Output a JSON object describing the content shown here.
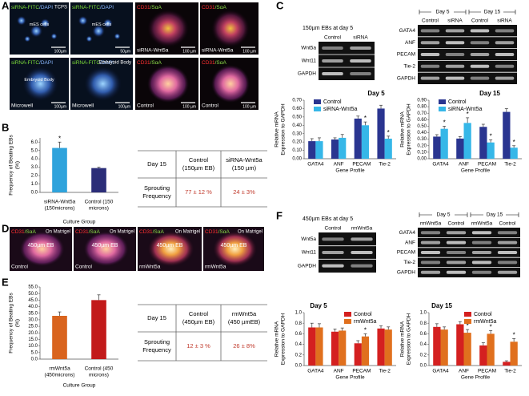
{
  "panel_labels": [
    "A",
    "B",
    "C",
    "D",
    "E",
    "F"
  ],
  "micrographs_a": [
    {
      "channel": [
        "siRNA-FITC",
        "/DAPI"
      ],
      "corner": "TCPS",
      "label": "mES cells",
      "scale": "100µm"
    },
    {
      "channel": [
        "siRNA-FITC",
        "/DAPI"
      ],
      "label": "mES cells",
      "scale": "50µm"
    },
    {
      "channel": [
        "CD31",
        "/SαA"
      ],
      "caption": "siRNA-Wnt5a",
      "scale": "100 µm"
    },
    {
      "channel": [
        "CD31",
        "/SαA"
      ],
      "caption": "siRNA-Wnt5a",
      "scale": "100 µm"
    },
    {
      "channel": [
        "siRNA-FITC",
        "/DAPI"
      ],
      "label": "Embryoid Body",
      "caption": "Microwell",
      "scale": "100µm"
    },
    {
      "channel": [
        "siRNA-FITC",
        "/DAPI"
      ],
      "corner": "Embryoid Body",
      "caption": "Microwell",
      "scale": "100µm"
    },
    {
      "channel": [
        "CD31",
        "/SαA"
      ],
      "caption": "Control",
      "scale": "100 µm"
    },
    {
      "channel": [
        "CD31",
        "/SαA"
      ],
      "caption": "Control",
      "scale": "100 µm"
    }
  ],
  "micrographs_d": [
    {
      "channel": [
        "CD31",
        "/SαA"
      ],
      "corner": "On Matrigel",
      "label": "450µm EB",
      "caption": "Control"
    },
    {
      "channel": [
        "CD31",
        "/SαA"
      ],
      "corner": "On Matrigel",
      "label": "450µm EB",
      "caption": "Control"
    },
    {
      "channel": [
        "CD31",
        "/SαA"
      ],
      "corner": "On Matrigel",
      "label": "450µm EB",
      "caption": "rmWnt5a"
    },
    {
      "channel": [
        "CD31",
        "/SαA"
      ],
      "corner": "On Matrigel",
      "label": "450µm EB",
      "caption": "rmWnt5a"
    }
  ],
  "gels": [
    {
      "title": "150µm EBs at day 5",
      "lanes": [
        "Control",
        "siRNA"
      ],
      "rows": [
        "Wnt5a",
        "Wnt11",
        "GAPDH"
      ]
    },
    {
      "days": [
        "Day 5",
        "Day 15"
      ],
      "lanes": [
        "Control",
        "siRNA",
        "Control",
        "siRNA"
      ],
      "rows": [
        "GATA4",
        "ANF",
        "PECAM",
        "Tie-2",
        "GAPDH"
      ]
    },
    {
      "title": "450µm EBs at day 5",
      "lanes": [
        "Control",
        "rmWnt5a"
      ],
      "rows": [
        "Wnt5a",
        "Wnt11",
        "GAPDH"
      ]
    },
    {
      "days": [
        "Day 5",
        "Day 15"
      ],
      "lanes": [
        "rmWnt5a",
        "Control",
        "rmWnt5a",
        "Control"
      ],
      "rows": [
        "GATA4",
        "ANF",
        "PECAM",
        "Tie-2",
        "GAPDH"
      ]
    }
  ],
  "tables": [
    {
      "header": [
        [
          "Day 15"
        ],
        [
          "Control",
          "(150µm EB)"
        ],
        [
          "siRNA-Wnt5a",
          "(150 µm)"
        ]
      ],
      "rows": [
        [
          [
            "Sprouting",
            "Frequency"
          ],
          [
            "77 ± 12 %"
          ],
          [
            "24 ± 3%"
          ]
        ]
      ]
    },
    {
      "header": [
        [
          "Day 15"
        ],
        [
          "Control",
          "(450µm EB)"
        ],
        [
          "rmWnt5a",
          "(450 µmEB)"
        ]
      ],
      "rows": [
        [
          [
            "Sprouting",
            "Frequency"
          ],
          [
            "12 ± 3 %"
          ],
          [
            "26 ± 8%"
          ]
        ]
      ]
    }
  ],
  "chart_data": [
    {
      "type": "bar",
      "ylabel": [
        "Frequency of Beating EBs",
        "(%)"
      ],
      "xlabel": "Culture Group",
      "categories": [
        [
          "siRNA-Wnt5a",
          "(150microns)"
        ],
        [
          "Control (150",
          "microns)"
        ]
      ],
      "values": [
        5.3,
        2.9
      ],
      "errors": [
        0.7,
        0.1
      ],
      "colors": [
        "#2fa3dc",
        "#2b2d78"
      ],
      "markers": [
        "*",
        null
      ],
      "ylim": [
        0,
        6.5
      ],
      "yticks": [
        {
          "value": 0,
          "label": "0.0"
        },
        {
          "value": 1,
          "label": "1.0"
        },
        {
          "value": 2,
          "label": "2.0"
        },
        {
          "value": 3,
          "label": "3.0"
        },
        {
          "value": 4,
          "label": "4.0"
        },
        {
          "value": 5,
          "label": "5.0"
        },
        {
          "value": 6,
          "label": "6.0"
        }
      ]
    },
    {
      "type": "grouped_bar",
      "title": "Day 5",
      "ylabel": [
        "Relative mRNA",
        "Expression to GAPDH"
      ],
      "xlabel": "Gene Profile",
      "categories": [
        "GATA4",
        "ANF",
        "PECAM",
        "Tie-2"
      ],
      "series": [
        {
          "name": "Control",
          "color": "#2a3590",
          "values": [
            0.21,
            0.23,
            0.48,
            0.6
          ],
          "errors": [
            0.03,
            0.02,
            0.03,
            0.04
          ],
          "markers": [
            null,
            null,
            null,
            null
          ]
        },
        {
          "name": "siRNA-Wnt5a",
          "color": "#36b7e8",
          "values": [
            0.21,
            0.25,
            0.4,
            0.24
          ],
          "errors": [
            0.04,
            0.04,
            0.04,
            0.03
          ],
          "markers": [
            null,
            null,
            "*",
            "*"
          ]
        }
      ],
      "ylim": [
        0,
        0.7
      ],
      "yticks": [
        {
          "value": 0,
          "label": "0.00"
        },
        {
          "value": 0.1,
          "label": "0.10"
        },
        {
          "value": 0.2,
          "label": "0.20"
        },
        {
          "value": 0.3,
          "label": "0.30"
        },
        {
          "value": 0.4,
          "label": "0.40"
        },
        {
          "value": 0.5,
          "label": "0.50"
        },
        {
          "value": 0.6,
          "label": "0.60"
        },
        {
          "value": 0.7,
          "label": "0.70"
        }
      ]
    },
    {
      "type": "grouped_bar",
      "title": "Day 15",
      "ylabel": [
        "Relative mRNA",
        "Expression to GAPDH"
      ],
      "xlabel": "Gene Profile",
      "categories": [
        "GATA4",
        "ANF",
        "PECAM",
        "Tie-2"
      ],
      "series": [
        {
          "name": "Control",
          "color": "#2a3590",
          "values": [
            0.34,
            0.31,
            0.49,
            0.72
          ],
          "errors": [
            0.03,
            0.03,
            0.04,
            0.05
          ],
          "markers": [
            null,
            null,
            null,
            null
          ]
        },
        {
          "name": "siRNA-Wnt5a",
          "color": "#36b7e8",
          "values": [
            0.46,
            0.55,
            0.25,
            0.17
          ],
          "errors": [
            0.04,
            0.08,
            0.04,
            0.03
          ],
          "markers": [
            "*",
            "*",
            "*",
            "*"
          ]
        }
      ],
      "ylim": [
        0,
        0.9
      ],
      "yticks": [
        {
          "value": 0,
          "label": "0.00"
        },
        {
          "value": 0.1,
          "label": "0.10"
        },
        {
          "value": 0.2,
          "label": "0.20"
        },
        {
          "value": 0.3,
          "label": "0.30"
        },
        {
          "value": 0.4,
          "label": "0.40"
        },
        {
          "value": 0.5,
          "label": "0.50"
        },
        {
          "value": 0.6,
          "label": "0.60"
        },
        {
          "value": 0.7,
          "label": "0.70"
        },
        {
          "value": 0.8,
          "label": "0.80"
        },
        {
          "value": 0.9,
          "label": "0.90"
        }
      ]
    },
    {
      "type": "bar",
      "ylabel": [
        "Frequency of Beating EBs",
        "(%)"
      ],
      "xlabel": "Culture Group",
      "categories": [
        [
          "rmWnt5a",
          "(450microns)"
        ],
        [
          "Control (450",
          "microns)"
        ]
      ],
      "values": [
        33,
        45
      ],
      "errors": [
        3,
        4
      ],
      "colors": [
        "#d9641e",
        "#c21a1a"
      ],
      "markers": [
        null,
        null
      ],
      "ylim": [
        0,
        55
      ],
      "yticks": [
        {
          "value": 0,
          "label": "0.0"
        },
        {
          "value": 5,
          "label": "5.0"
        },
        {
          "value": 10,
          "label": "10.0"
        },
        {
          "value": 15,
          "label": "15.0"
        },
        {
          "value": 20,
          "label": "20.0"
        },
        {
          "value": 25,
          "label": "25.0"
        },
        {
          "value": 30,
          "label": "30.0"
        },
        {
          "value": 35,
          "label": "35.0"
        },
        {
          "value": 40,
          "label": "40.0"
        },
        {
          "value": 45,
          "label": "45.0"
        },
        {
          "value": 50,
          "label": "50.0"
        },
        {
          "value": 55,
          "label": "55.0"
        }
      ]
    },
    {
      "type": "grouped_bar",
      "title": "Day 5",
      "ylabel": [
        "Relative mRNA",
        "Expression to GAPDH"
      ],
      "xlabel": "Gene Profile",
      "categories": [
        "GATA4",
        "ANF",
        "PECAM",
        "Tie-2"
      ],
      "series": [
        {
          "name": "Control",
          "color": "#d42020",
          "values": [
            0.72,
            0.64,
            0.42,
            0.7
          ],
          "errors": [
            0.08,
            0.05,
            0.05,
            0.05
          ],
          "markers": [
            null,
            null,
            null,
            null
          ]
        },
        {
          "name": "rmWnt5a",
          "color": "#e0701e",
          "values": [
            0.72,
            0.66,
            0.55,
            0.68
          ],
          "errors": [
            0.07,
            0.05,
            0.05,
            0.05
          ],
          "markers": [
            null,
            null,
            "*",
            null
          ]
        }
      ],
      "ylim": [
        0,
        1.0
      ],
      "yticks": [
        {
          "value": 0,
          "label": "0.0"
        },
        {
          "value": 0.2,
          "label": "0.2"
        },
        {
          "value": 0.4,
          "label": "0.4"
        },
        {
          "value": 0.6,
          "label": "0.6"
        },
        {
          "value": 0.8,
          "label": "0.8"
        },
        {
          "value": 1.0,
          "label": "1.0"
        }
      ]
    },
    {
      "type": "grouped_bar",
      "title": "Day 15",
      "ylabel": [
        "Relative mRNA",
        "Expression to GAPDH"
      ],
      "xlabel": "Gene Profile",
      "categories": [
        "GATA4",
        "ANF",
        "PECAM",
        "Tie-2"
      ],
      "series": [
        {
          "name": "Control",
          "color": "#d42020",
          "values": [
            0.73,
            0.78,
            0.38,
            0.07
          ],
          "errors": [
            0.06,
            0.05,
            0.05,
            0.02
          ],
          "markers": [
            null,
            null,
            null,
            null
          ]
        },
        {
          "name": "rmWnt5a",
          "color": "#e0701e",
          "values": [
            0.68,
            0.62,
            0.6,
            0.45
          ],
          "errors": [
            0.05,
            0.06,
            0.06,
            0.06
          ],
          "markers": [
            null,
            "*",
            "*",
            "*"
          ]
        }
      ],
      "ylim": [
        0,
        1.0
      ],
      "yticks": [
        {
          "value": 0,
          "label": "0.0"
        },
        {
          "value": 0.2,
          "label": "0.2"
        },
        {
          "value": 0.4,
          "label": "0.4"
        },
        {
          "value": 0.6,
          "label": "0.6"
        },
        {
          "value": 0.8,
          "label": "0.8"
        },
        {
          "value": 1.0,
          "label": "1.0"
        }
      ]
    }
  ]
}
